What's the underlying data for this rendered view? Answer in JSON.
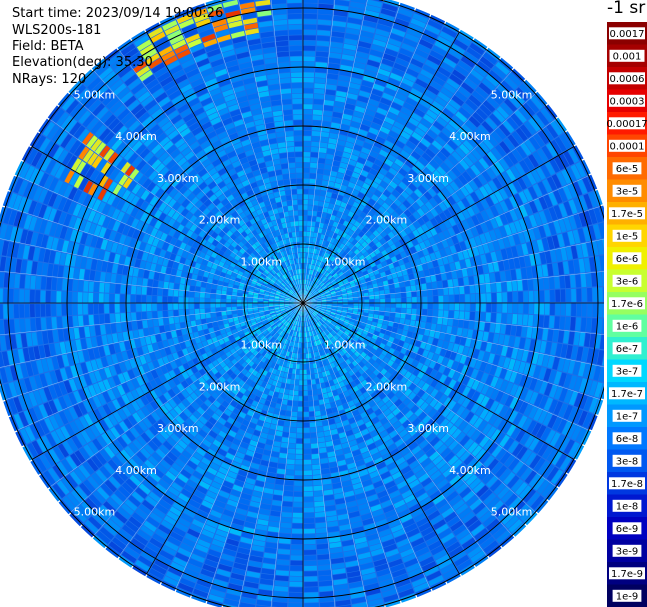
{
  "header": {
    "start_time": "Start time: 2023/09/14 19:00:26",
    "instrument": "WLS200s-181",
    "field": "Field: BETA",
    "elevation": "Elevation(deg): 35.30",
    "nrays": "NRays: 120"
  },
  "colorbar": {
    "unit": "-1 sr",
    "labels": [
      "0.0017",
      "0.001",
      "0.0006",
      "0.0003",
      "0.00017",
      "0.0001",
      "6e-5",
      "3e-5",
      "1.7e-5",
      "1e-5",
      "6e-6",
      "3e-6",
      "1.7e-6",
      "1e-6",
      "6e-7",
      "3e-7",
      "1.7e-7",
      "1e-7",
      "6e-8",
      "3e-8",
      "1.7e-8",
      "1e-8",
      "6e-9",
      "3e-9",
      "1.7e-9",
      "1e-9"
    ],
    "colors": [
      "#8b0000",
      "#a50000",
      "#c40000",
      "#e60000",
      "#ff1a00",
      "#ff4500",
      "#ff6a00",
      "#ff8c00",
      "#ffb000",
      "#ffd500",
      "#f0f000",
      "#c8ff30",
      "#96ff60",
      "#60ffa0",
      "#30f0d0",
      "#00d8ff",
      "#00b8ff",
      "#0098ff",
      "#0078ff",
      "#0058f0",
      "#0038e0",
      "#0018d0",
      "#0000c0",
      "#0000a0",
      "#000080",
      "#000060"
    ]
  },
  "chart_data": {
    "type": "heatmap",
    "projection": "polar PPI",
    "field": "BETA",
    "n_rays": 120,
    "range_rings_km": [
      1,
      2,
      3,
      4,
      5
    ],
    "ring_labels": [
      "1.00km",
      "2.00km",
      "3.00km",
      "4.00km",
      "5.00km"
    ],
    "spoke_angles_deg": [
      0,
      30,
      60,
      90,
      120,
      150,
      180,
      210,
      240,
      270,
      300,
      330
    ],
    "max_range_km": 5.3,
    "dominant_value_range": [
      "1e-8",
      "3e-7"
    ],
    "hotspot_regions": [
      {
        "azimuth_deg_range": [
          325,
          355
        ],
        "range_km": [
          4.6,
          5.3
        ],
        "value_range": [
          "1e-6",
          "0.0001"
        ]
      },
      {
        "azimuth_deg_range": [
          298,
          310
        ],
        "range_km": [
          3.6,
          4.6
        ],
        "value_range": [
          "1e-6",
          "3e-5"
        ]
      }
    ]
  }
}
